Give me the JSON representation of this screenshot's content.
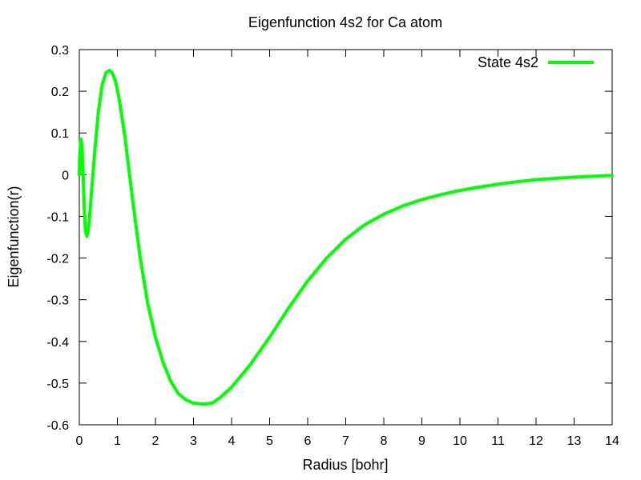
{
  "chart_data": {
    "type": "line",
    "title": "Eigenfunction 4s2 for Ca atom",
    "xlabel": "Radius [bohr]",
    "ylabel": "Eigenfunction(r)",
    "xlim": [
      0,
      14
    ],
    "ylim": [
      -0.6,
      0.3
    ],
    "xticks": [
      "0",
      "1",
      "2",
      "3",
      "4",
      "5",
      "6",
      "7",
      "8",
      "9",
      "10",
      "11",
      "12",
      "13",
      "14"
    ],
    "yticks": [
      "0.3",
      "0.2",
      "0.1",
      "0",
      "-0.1",
      "-0.2",
      "-0.3",
      "-0.4",
      "-0.5",
      "-0.6"
    ],
    "grid": false,
    "legend_position": "top-right",
    "series": [
      {
        "name": "State 4s2",
        "color": "#00ff00",
        "x": [
          0.0,
          0.01,
          0.04,
          0.07,
          0.1,
          0.13,
          0.16,
          0.2,
          0.24,
          0.28,
          0.33,
          0.4,
          0.5,
          0.6,
          0.7,
          0.8,
          0.86,
          0.95,
          1.05,
          1.2,
          1.4,
          1.6,
          1.8,
          2.0,
          2.2,
          2.4,
          2.6,
          2.8,
          3.0,
          3.2,
          3.35,
          3.5,
          3.7,
          4.0,
          4.5,
          5.0,
          5.5,
          6.0,
          6.5,
          7.0,
          7.5,
          8.0,
          8.5,
          9.0,
          9.5,
          10.0,
          10.5,
          11.0,
          11.5,
          12.0,
          12.5,
          13.0,
          13.5,
          14.0
        ],
        "y": [
          0.0,
          0.04,
          0.085,
          0.07,
          0.0,
          -0.08,
          -0.135,
          -0.148,
          -0.13,
          -0.09,
          -0.03,
          0.05,
          0.15,
          0.215,
          0.245,
          0.25,
          0.245,
          0.225,
          0.18,
          0.09,
          -0.06,
          -0.2,
          -0.31,
          -0.39,
          -0.45,
          -0.495,
          -0.525,
          -0.54,
          -0.548,
          -0.55,
          -0.55,
          -0.548,
          -0.535,
          -0.51,
          -0.455,
          -0.39,
          -0.32,
          -0.255,
          -0.2,
          -0.155,
          -0.12,
          -0.095,
          -0.075,
          -0.06,
          -0.048,
          -0.038,
          -0.03,
          -0.023,
          -0.017,
          -0.012,
          -0.009,
          -0.006,
          -0.004,
          -0.002
        ]
      }
    ]
  }
}
